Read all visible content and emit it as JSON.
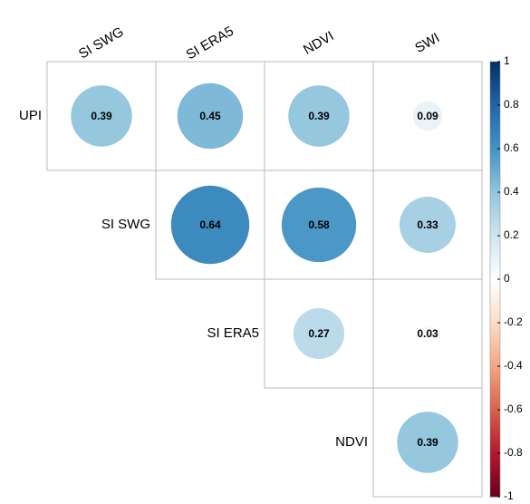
{
  "chart_data": {
    "type": "corrplot",
    "rows": [
      "UPI",
      "SI SWG",
      "SI ERA5",
      "NDVI"
    ],
    "columns": [
      "SI SWG",
      "SI ERA5",
      "NDVI",
      "SWI"
    ],
    "values": [
      [
        0.39,
        0.45,
        0.39,
        0.09
      ],
      [
        null,
        0.64,
        0.58,
        0.33
      ],
      [
        null,
        null,
        0.27,
        0.03
      ],
      [
        null,
        null,
        null,
        0.39
      ]
    ],
    "clim": [
      -1,
      1
    ],
    "colorbar_ticks": [
      1,
      0.8,
      0.6,
      0.4,
      0.2,
      0,
      -0.2,
      -0.4,
      -0.6,
      -0.8,
      -1
    ],
    "colors": [
      "#67001F",
      "#B2182B",
      "#D6604D",
      "#F4A582",
      "#FDDBC7",
      "#FFFFFF",
      "#D1E5F0",
      "#92C5DE",
      "#4393C3",
      "#2166AC",
      "#053061"
    ]
  }
}
